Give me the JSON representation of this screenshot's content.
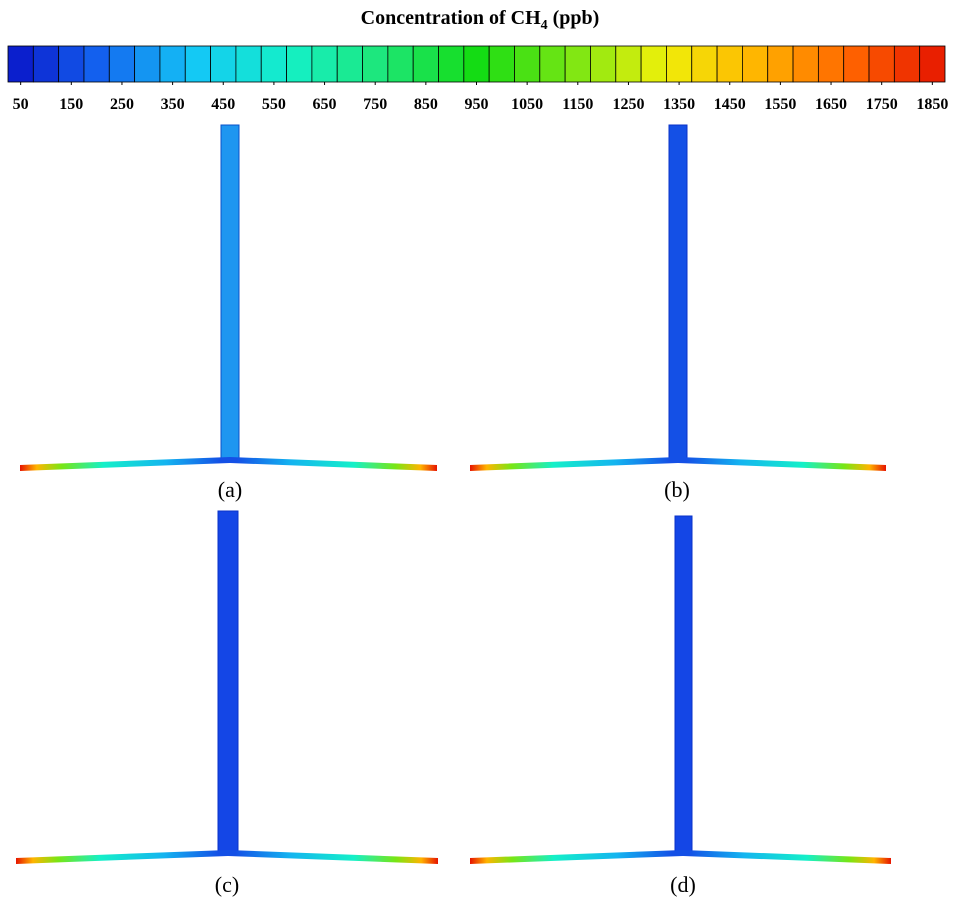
{
  "figure": {
    "title": {
      "main": "Concentration of CH",
      "subscript": "4",
      "unit": " (ppb)"
    },
    "colorbar": {
      "range": [
        25,
        1875
      ],
      "segments": 37,
      "ticks": [
        50,
        150,
        250,
        350,
        450,
        550,
        650,
        750,
        850,
        950,
        1050,
        1150,
        1250,
        1350,
        1450,
        1550,
        1650,
        1750,
        1850
      ],
      "colormap": [
        "#0a14c8",
        "#1464f0",
        "#14c8f5",
        "#14f0c8",
        "#1ee678",
        "#14dc14",
        "#78e614",
        "#f0f00a",
        "#ffb400",
        "#ff6400",
        "#e61400"
      ]
    },
    "panels": [
      "(a)",
      "(b)",
      "(c)",
      "(d)"
    ]
  }
}
